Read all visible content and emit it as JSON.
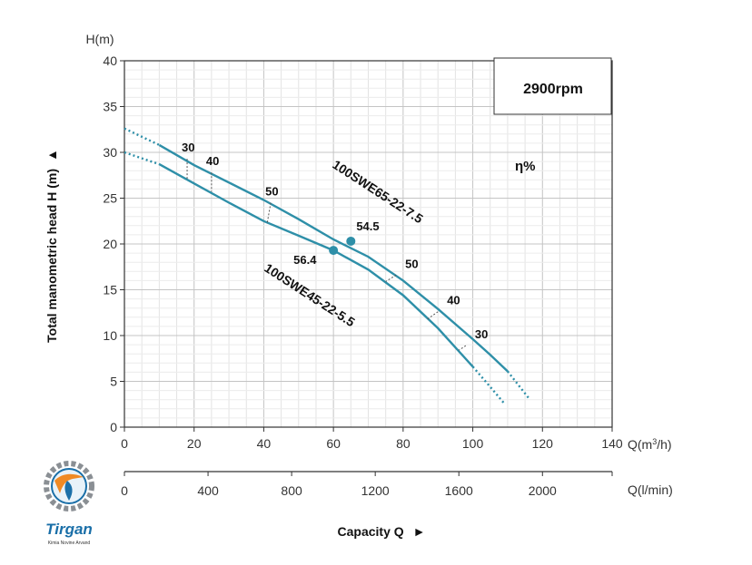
{
  "chart_data": {
    "type": "line",
    "title": "",
    "xlabel": "Capacity Q",
    "ylabel": "Total manometric head H (m)",
    "y_unit": "H(m)",
    "x_unit": "Q(m3/h)",
    "x2_unit": "Q(l/min)",
    "xlim": [
      0,
      140
    ],
    "ylim": [
      0,
      40
    ],
    "x_ticks": [
      0,
      20,
      40,
      60,
      80,
      100,
      120,
      140
    ],
    "y_ticks": [
      0,
      5,
      10,
      15,
      20,
      25,
      30,
      35,
      40
    ],
    "x2_ticks": [
      0,
      400,
      800,
      1200,
      1600,
      2000
    ],
    "grid": true,
    "speed_label": "2900rpm",
    "efficiency_label": "η%",
    "series": [
      {
        "name": "100SWE65-22-7.5",
        "x": [
          10,
          20,
          30,
          40,
          50,
          60,
          70,
          80,
          90,
          100,
          105,
          110,
          116
        ],
        "y": [
          30.8,
          28.6,
          26.7,
          24.8,
          22.7,
          20.5,
          18.6,
          16.0,
          12.9,
          9.6,
          7.9,
          6.1,
          3.2
        ],
        "dotted_ranges": [
          [
            0,
            10,
            32.6
          ],
          [
            110,
            116
          ]
        ],
        "bep": {
          "x": 65,
          "y": 20.3,
          "label": "54.5"
        },
        "efficiency_marks": [
          {
            "label": "30",
            "x": 18,
            "y": 29.3
          },
          {
            "label": "40",
            "x": 25,
            "y": 27.8
          },
          {
            "label": "50",
            "x": 42,
            "y": 24.5
          },
          {
            "label": "50",
            "x": 78,
            "y": 16.6
          },
          {
            "label": "40",
            "x": 90,
            "y": 12.6
          },
          {
            "label": "30",
            "x": 98,
            "y": 8.9
          }
        ]
      },
      {
        "name": "100SWE45-22-5.5",
        "x": [
          10,
          20,
          30,
          40,
          50,
          60,
          70,
          80,
          90,
          100,
          105,
          109
        ],
        "y": [
          28.7,
          26.6,
          24.5,
          22.5,
          20.9,
          19.3,
          17.2,
          14.4,
          10.8,
          6.6,
          4.4,
          2.6
        ],
        "dotted_ranges": [
          [
            0,
            10,
            30.0
          ],
          [
            100,
            109
          ]
        ],
        "bep": {
          "x": 60,
          "y": 19.3,
          "label": "56.4"
        },
        "efficiency_marks": [
          {
            "label": "",
            "x": 18,
            "y": 27.0
          },
          {
            "label": "",
            "x": 25,
            "y": 25.7
          },
          {
            "label": "",
            "x": 41,
            "y": 22.3
          },
          {
            "label": "",
            "x": 75,
            "y": 15.9
          },
          {
            "label": "",
            "x": 87,
            "y": 11.8
          },
          {
            "label": "",
            "x": 96,
            "y": 8.4
          }
        ]
      }
    ]
  },
  "logo": {
    "name": "Tirgan",
    "tagline": "Kimia Novine Arvand"
  }
}
